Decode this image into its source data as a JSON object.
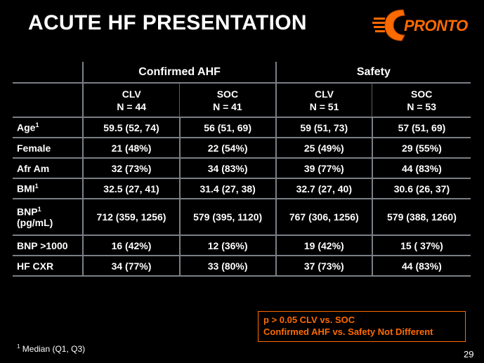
{
  "title": "ACUTE HF PRESENTATION",
  "logo": {
    "text": "PRONTO",
    "letter": "C",
    "color": "#ff6a00"
  },
  "table": {
    "group_headers": [
      "Confirmed AHF",
      "Safety"
    ],
    "columns": [
      {
        "name": "CLV",
        "n": "N = 44"
      },
      {
        "name": "SOC",
        "n": "N = 41"
      },
      {
        "name": "CLV",
        "n": "N = 51"
      },
      {
        "name": "SOC",
        "n": "N = 53"
      }
    ],
    "rows": [
      {
        "label": "Age",
        "sup": "1",
        "label2": "",
        "cells": [
          "59.5  (52, 74)",
          "56  (51, 69)",
          "59  (51, 73)",
          "57  (51, 69)"
        ]
      },
      {
        "label": "Female",
        "sup": "",
        "label2": "",
        "cells": [
          "21  (48%)",
          "22  (54%)",
          "25  (49%)",
          "29  (55%)"
        ]
      },
      {
        "label": "Afr Am",
        "sup": "",
        "label2": "",
        "cells": [
          "32  (73%)",
          "34  (83%)",
          "39  (77%)",
          "44  (83%)"
        ]
      },
      {
        "label": "BMI",
        "sup": "1",
        "label2": "",
        "cells": [
          "32.5  (27, 41)",
          "31.4  (27, 38)",
          "32.7  (27, 40)",
          "30.6  (26, 37)"
        ]
      },
      {
        "label": "BNP",
        "sup": "1",
        "label2": "(pg/mL)",
        "cells": [
          "712 (359, 1256)",
          "579 (395, 1120)",
          "767 (306, 1256)",
          "579 (388, 1260)"
        ]
      },
      {
        "label": "BNP >1000",
        "sup": "",
        "label2": "",
        "cells": [
          "16  (42%)",
          "12  (36%)",
          "19  (42%)",
          "15 ( 37%)"
        ]
      },
      {
        "label": "HF CXR",
        "sup": "",
        "label2": "",
        "cells": [
          "34 (77%)",
          "33 (80%)",
          "37 (73%)",
          "44 (83%)"
        ]
      }
    ]
  },
  "note": {
    "line1": "p > 0.05 CLV vs. SOC",
    "line2": "Confirmed AHF  vs. Safety Not Different"
  },
  "footnote": {
    "sup": "1",
    "text": " Median (Q1, Q3)"
  },
  "page_number": "29",
  "colors": {
    "background": "#000000",
    "text": "#ffffff",
    "accent": "#ff6a00",
    "rule": "#7a7f86"
  }
}
